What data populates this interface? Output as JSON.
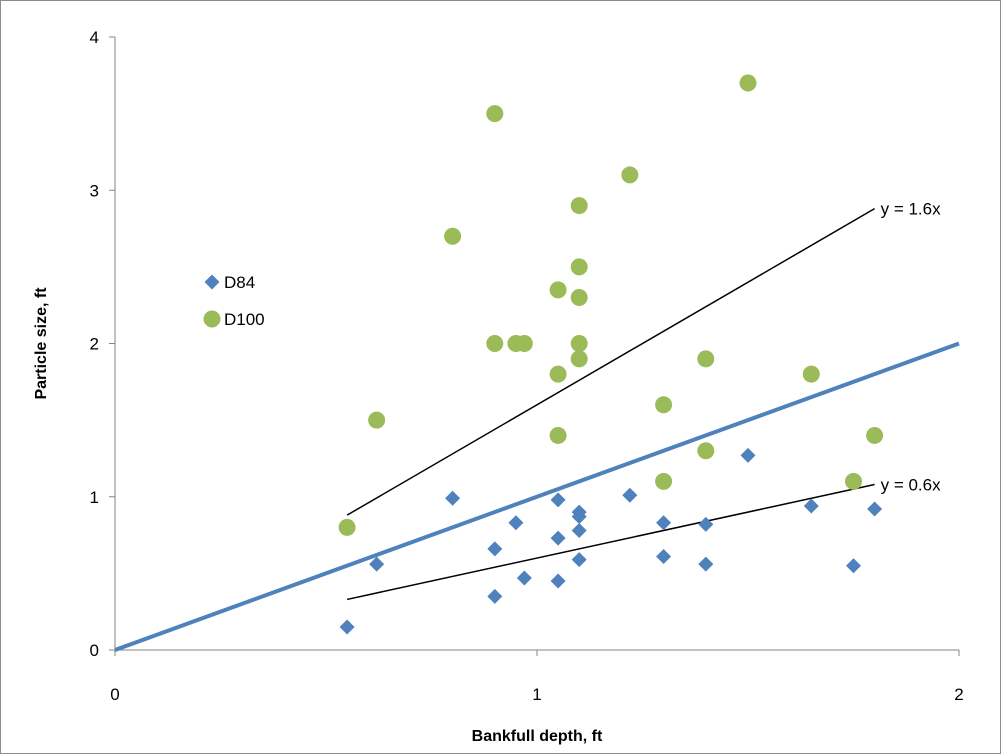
{
  "chart_data": {
    "type": "scatter",
    "xlabel": "Bankfull depth, ft",
    "ylabel": "Particle size, ft",
    "xlim": [
      0,
      2
    ],
    "ylim": [
      0,
      4
    ],
    "x_ticks": [
      "0",
      "1",
      "2"
    ],
    "y_ticks": [
      "0",
      "1",
      "2",
      "3",
      "4"
    ],
    "grid": false,
    "legend_position": "left",
    "series": [
      {
        "name": "D84",
        "marker": "diamond",
        "color": "#4f81bd",
        "points": [
          [
            0.55,
            0.15
          ],
          [
            0.62,
            0.56
          ],
          [
            0.8,
            0.99
          ],
          [
            0.9,
            0.35
          ],
          [
            0.9,
            0.66
          ],
          [
            0.95,
            0.83
          ],
          [
            0.97,
            0.47
          ],
          [
            1.05,
            0.45
          ],
          [
            1.05,
            0.73
          ],
          [
            1.05,
            0.98
          ],
          [
            1.1,
            0.59
          ],
          [
            1.1,
            0.78
          ],
          [
            1.1,
            0.87
          ],
          [
            1.1,
            0.9
          ],
          [
            1.22,
            1.01
          ],
          [
            1.3,
            0.61
          ],
          [
            1.3,
            0.83
          ],
          [
            1.4,
            0.56
          ],
          [
            1.4,
            0.82
          ],
          [
            1.5,
            1.27
          ],
          [
            1.65,
            0.94
          ],
          [
            1.75,
            0.55
          ],
          [
            1.8,
            0.92
          ]
        ]
      },
      {
        "name": "D100",
        "marker": "circle",
        "color": "#9bbb59",
        "points": [
          [
            0.55,
            0.8
          ],
          [
            0.62,
            1.5
          ],
          [
            0.8,
            2.7
          ],
          [
            0.9,
            2.0
          ],
          [
            0.9,
            3.5
          ],
          [
            0.95,
            2.0
          ],
          [
            0.97,
            2.0
          ],
          [
            1.05,
            1.4
          ],
          [
            1.05,
            1.8
          ],
          [
            1.05,
            2.35
          ],
          [
            1.1,
            1.9
          ],
          [
            1.1,
            2.0
          ],
          [
            1.1,
            2.3
          ],
          [
            1.1,
            2.5
          ],
          [
            1.1,
            2.9
          ],
          [
            1.22,
            3.1
          ],
          [
            1.3,
            1.1
          ],
          [
            1.3,
            1.6
          ],
          [
            1.4,
            1.3
          ],
          [
            1.4,
            1.9
          ],
          [
            1.5,
            3.7
          ],
          [
            1.65,
            1.8
          ],
          [
            1.75,
            1.1
          ],
          [
            1.8,
            1.4
          ]
        ]
      }
    ],
    "lines": [
      {
        "label": "",
        "slope": 1.0,
        "x_range": [
          0,
          2
        ],
        "color": "#4f81bd",
        "style": "thick"
      },
      {
        "label": "y = 1.6x",
        "slope": 1.6,
        "x_range": [
          0.55,
          1.8
        ],
        "color": "#000000",
        "style": "thin"
      },
      {
        "label": "y = 0.6x",
        "slope": 0.6,
        "x_range": [
          0.55,
          1.8
        ],
        "color": "#000000",
        "style": "thin"
      }
    ]
  }
}
